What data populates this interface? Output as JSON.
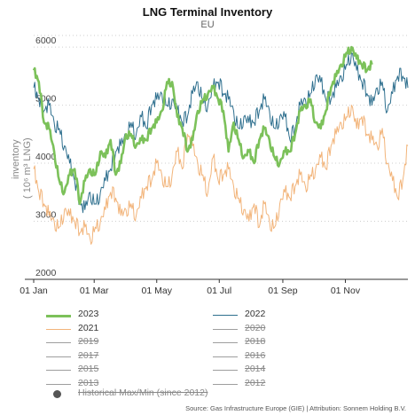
{
  "title": "LNG Terminal Inventory",
  "subtitle": "EU",
  "source": "Source: Gas Infrastructure Europe (GIE) | Attribution: Sonnem Holding B.V.",
  "chart_data": {
    "type": "line",
    "title": "LNG Terminal Inventory",
    "subtitle": "EU",
    "ylabel": "inventory\n(10⁶ m³ LNG)",
    "ylabel_line1": "inventory",
    "ylabel_line2": "( 10⁶ m³ LNG)",
    "ylim": [
      2000,
      6200
    ],
    "yticks": [
      2000,
      3000,
      4000,
      5000,
      6000
    ],
    "x_ticks": [
      "01 Jan",
      "01 Mar",
      "01 May",
      "01 Jul",
      "01 Sep",
      "01 Nov"
    ],
    "x_tick_days": [
      0,
      59,
      120,
      181,
      243,
      304
    ],
    "x_range_days": [
      0,
      365
    ],
    "grid": "horizontal dotted",
    "legend_position": "bottom",
    "series": [
      {
        "name": "2023",
        "color": "#7cc15a",
        "width": 2.6,
        "days": [
          0,
          5,
          10,
          15,
          20,
          25,
          30,
          35,
          40,
          45,
          50,
          55,
          60,
          65,
          70,
          75,
          80,
          85,
          90,
          95,
          100,
          105,
          110,
          115,
          120,
          125,
          130,
          135,
          140,
          145,
          150,
          155,
          160,
          165,
          170,
          175,
          180,
          185,
          190,
          195,
          200,
          205,
          210,
          215,
          220,
          225,
          230,
          235,
          240,
          245,
          250,
          255,
          260,
          265,
          270,
          275,
          280,
          285,
          290,
          295,
          300,
          305,
          310,
          315,
          320,
          325,
          330
        ],
        "values": [
          5600,
          5400,
          4700,
          4600,
          4200,
          3700,
          3500,
          3800,
          3900,
          3300,
          3700,
          3900,
          3800,
          4200,
          4100,
          4400,
          3800,
          4000,
          4500,
          4500,
          4300,
          4400,
          4400,
          4600,
          4700,
          4900,
          5400,
          5400,
          4800,
          4600,
          4200,
          4400,
          4900,
          5100,
          5200,
          5300,
          5100,
          4900,
          4200,
          4700,
          4400,
          4100,
          4200,
          4000,
          4400,
          4600,
          4400,
          4100,
          4000,
          4200,
          4200,
          4500,
          4900,
          5000,
          5100,
          4700,
          4600,
          4900,
          5300,
          5500,
          5700,
          5900,
          6000,
          5800,
          5700,
          5600,
          5700
        ]
      },
      {
        "name": "2022",
        "color": "#2e6f8e",
        "width": 1.0,
        "days": [
          0,
          5,
          10,
          15,
          20,
          25,
          30,
          35,
          40,
          45,
          50,
          55,
          60,
          65,
          70,
          75,
          80,
          85,
          90,
          95,
          100,
          105,
          110,
          115,
          120,
          125,
          130,
          135,
          140,
          145,
          150,
          155,
          160,
          165,
          170,
          175,
          180,
          185,
          190,
          195,
          200,
          205,
          210,
          215,
          220,
          225,
          230,
          235,
          240,
          245,
          250,
          255,
          260,
          265,
          270,
          275,
          280,
          285,
          290,
          295,
          300,
          305,
          310,
          315,
          320,
          325,
          330,
          335,
          340,
          345,
          350,
          355,
          360,
          365
        ],
        "values": [
          5300,
          5100,
          4900,
          5000,
          4700,
          4600,
          4300,
          4000,
          3700,
          3300,
          3200,
          3500,
          3300,
          3500,
          3700,
          3900,
          4200,
          4300,
          4500,
          4700,
          4500,
          4800,
          4600,
          5000,
          5100,
          5200,
          5000,
          5100,
          4900,
          4700,
          4800,
          5200,
          5400,
          5100,
          5000,
          5300,
          5400,
          5200,
          5100,
          4900,
          4600,
          4800,
          4700,
          4700,
          4900,
          5100,
          4900,
          4600,
          4800,
          4800,
          4400,
          4600,
          5000,
          5100,
          5200,
          5500,
          5400,
          5100,
          5100,
          5300,
          5500,
          5700,
          5900,
          5600,
          5400,
          5200,
          5000,
          5300,
          5400,
          4900,
          5200,
          5500,
          5500,
          5300
        ]
      },
      {
        "name": "2021",
        "color": "#f2b47a",
        "width": 1.0,
        "days": [
          0,
          5,
          10,
          15,
          20,
          25,
          30,
          35,
          40,
          45,
          50,
          55,
          60,
          65,
          70,
          75,
          80,
          85,
          90,
          95,
          100,
          105,
          110,
          115,
          120,
          125,
          130,
          135,
          140,
          145,
          150,
          155,
          160,
          165,
          170,
          175,
          180,
          185,
          190,
          195,
          200,
          205,
          210,
          215,
          220,
          225,
          230,
          235,
          240,
          245,
          250,
          255,
          260,
          265,
          270,
          275,
          280,
          285,
          290,
          295,
          300,
          305,
          310,
          315,
          320,
          325,
          330,
          335,
          340,
          345,
          350,
          355,
          360,
          365
        ],
        "values": [
          3900,
          3500,
          3300,
          3100,
          3000,
          2900,
          3200,
          3100,
          3000,
          2800,
          2900,
          2700,
          2900,
          3000,
          3200,
          3500,
          3400,
          3100,
          3200,
          3300,
          3100,
          3400,
          3600,
          3700,
          4000,
          3800,
          3600,
          3800,
          4200,
          3900,
          4500,
          4300,
          4000,
          3800,
          3500,
          4100,
          3700,
          3800,
          3900,
          3600,
          3400,
          3200,
          3000,
          3300,
          2900,
          3300,
          3000,
          2900,
          3300,
          3500,
          3400,
          3600,
          3800,
          3600,
          3800,
          3900,
          4100,
          3900,
          4300,
          4500,
          4700,
          4800,
          5000,
          4600,
          4800,
          4500,
          4400,
          4300,
          4600,
          4000,
          3700,
          3400,
          3700,
          4300
        ]
      },
      {
        "name": "2020",
        "color": "#9e9e9e",
        "width": 1.0,
        "enabled": false
      },
      {
        "name": "2019",
        "color": "#9e9e9e",
        "width": 1.0,
        "enabled": false
      },
      {
        "name": "2018",
        "color": "#9e9e9e",
        "width": 1.0,
        "enabled": false
      },
      {
        "name": "2017",
        "color": "#9e9e9e",
        "width": 1.0,
        "enabled": false
      },
      {
        "name": "2016",
        "color": "#9e9e9e",
        "width": 1.0,
        "enabled": false
      },
      {
        "name": "2015",
        "color": "#9e9e9e",
        "width": 1.0,
        "enabled": false
      },
      {
        "name": "2014",
        "color": "#9e9e9e",
        "width": 1.0,
        "enabled": false
      },
      {
        "name": "2013",
        "color": "#9e9e9e",
        "width": 1.0,
        "enabled": false
      },
      {
        "name": "2012",
        "color": "#9e9e9e",
        "width": 1.0,
        "enabled": false
      }
    ],
    "band": {
      "name": "Historical Max/Min (since 2012)",
      "color": "#555555",
      "enabled": false
    }
  },
  "legend": [
    {
      "label": "2023",
      "color": "#7cc15a",
      "thick": true,
      "enabled": true
    },
    {
      "label": "2022",
      "color": "#2e6f8e",
      "thick": false,
      "enabled": true
    },
    {
      "label": "2021",
      "color": "#f2b47a",
      "thick": false,
      "enabled": true
    },
    {
      "label": "2020",
      "color": "#9e9e9e",
      "thick": false,
      "enabled": false
    },
    {
      "label": "2019",
      "color": "#9e9e9e",
      "thick": false,
      "enabled": false
    },
    {
      "label": "2018",
      "color": "#9e9e9e",
      "thick": false,
      "enabled": false
    },
    {
      "label": "2017",
      "color": "#9e9e9e",
      "thick": false,
      "enabled": false
    },
    {
      "label": "2016",
      "color": "#9e9e9e",
      "thick": false,
      "enabled": false
    },
    {
      "label": "2015",
      "color": "#9e9e9e",
      "thick": false,
      "enabled": false
    },
    {
      "label": "2014",
      "color": "#9e9e9e",
      "thick": false,
      "enabled": false
    },
    {
      "label": "2013",
      "color": "#9e9e9e",
      "thick": false,
      "enabled": false
    },
    {
      "label": "2012",
      "color": "#9e9e9e",
      "thick": false,
      "enabled": false
    }
  ],
  "legend_band": {
    "label": "Historical Max/Min (since 2012)",
    "color": "#555555",
    "enabled": false
  }
}
